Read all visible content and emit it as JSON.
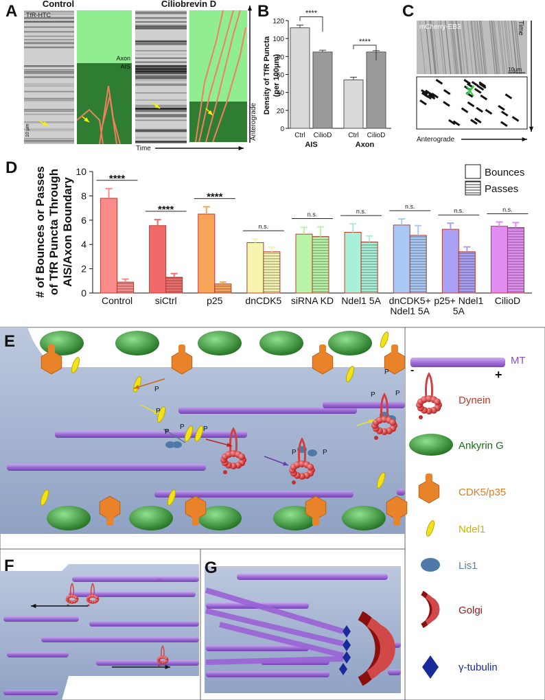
{
  "panels": {
    "A": {
      "label": "A",
      "control": "Control",
      "ciliobrevin": "Ciliobrevin D",
      "stain": "TfR-HTC",
      "scale": "10 μm",
      "axon": "Axon",
      "ais": "AIS",
      "time": "Time",
      "anterograde": "Anterograde"
    },
    "C": {
      "label": "C",
      "stain": "mCherry-EB3",
      "scale": "10μm",
      "time": "Time",
      "anterograde": "Anterograde"
    },
    "E": {
      "label": "E",
      "p_labels": [
        "P",
        "P",
        "P",
        "P",
        "P",
        "P",
        "P",
        "P",
        "P",
        "P"
      ],
      "legend": {
        "mt": "MT",
        "minus": "-",
        "plus": "+",
        "dynein": "Dynein",
        "ankyrin": "Ankyrin G",
        "cdk5": "CDK5/p35",
        "ndel1": "Ndel1",
        "lis1": "Lis1",
        "golgi": "Golgi",
        "gtubulin": "γ-tubulin"
      }
    },
    "F": {
      "label": "F"
    },
    "G": {
      "label": "G"
    }
  },
  "chart_data": [
    {
      "type": "bar",
      "panel_label": "B",
      "y_label_lines": [
        "Density of TfR Puncta",
        "(per 100μm)"
      ],
      "categories": [
        "Ctrl",
        "CilioD",
        "Ctrl",
        "CilioD"
      ],
      "groups": [
        "AIS",
        "Axon"
      ],
      "values": [
        112,
        85,
        54,
        85
      ],
      "errors": [
        3,
        2,
        3,
        1.5
      ],
      "colors": [
        "#d9d9d9",
        "#9a9a9a",
        "#d9d9d9",
        "#9a9a9a"
      ],
      "ylim": [
        0,
        120
      ],
      "yticks": [
        0,
        20,
        40,
        60,
        80,
        100,
        120
      ],
      "annotations": [
        "****",
        "****"
      ]
    },
    {
      "type": "grouped_bar",
      "panel_label": "D",
      "y_label_lines": [
        "# of Bounces or Passes",
        "of TfR Puncta Through",
        "AIS/Axon Boundary"
      ],
      "categories": [
        "Control",
        "siCtrl",
        "p25",
        "dnCDK5",
        "siRNA KD",
        "Ndel1 5A",
        "dnCDK5+ Ndel1 5A",
        "p25+ Ndel1 5A",
        "CilioD"
      ],
      "colors": [
        "#f98b8b",
        "#f06a6a",
        "#f8a55a",
        "#f5f5b0",
        "#b8f5a8",
        "#a8f0d8",
        "#a8c8f5",
        "#a8a0f5",
        "#e08cf0"
      ],
      "series": [
        {
          "name": "Bounces",
          "hatch": false,
          "values": [
            7.8,
            5.55,
            6.5,
            4.15,
            4.85,
            5.0,
            5.6,
            5.25,
            5.5
          ],
          "errors": [
            0.8,
            0.5,
            0.6,
            0.3,
            0.55,
            0.7,
            0.5,
            0.5,
            0.35
          ]
        },
        {
          "name": "Passes",
          "hatch": true,
          "values": [
            0.9,
            1.3,
            0.75,
            3.4,
            4.65,
            4.2,
            4.75,
            3.4,
            5.4
          ],
          "errors": [
            0.25,
            0.3,
            0.15,
            0.4,
            0.8,
            0.5,
            0.8,
            0.4,
            0.4
          ]
        }
      ],
      "ylim": [
        0,
        10
      ],
      "yticks": [
        0,
        2,
        4,
        6,
        8,
        10
      ],
      "annotations": [
        "****",
        "****",
        "****",
        "n.s.",
        "n.s.",
        "n.s.",
        "n.s.",
        "n.s.",
        "n.s."
      ]
    }
  ]
}
